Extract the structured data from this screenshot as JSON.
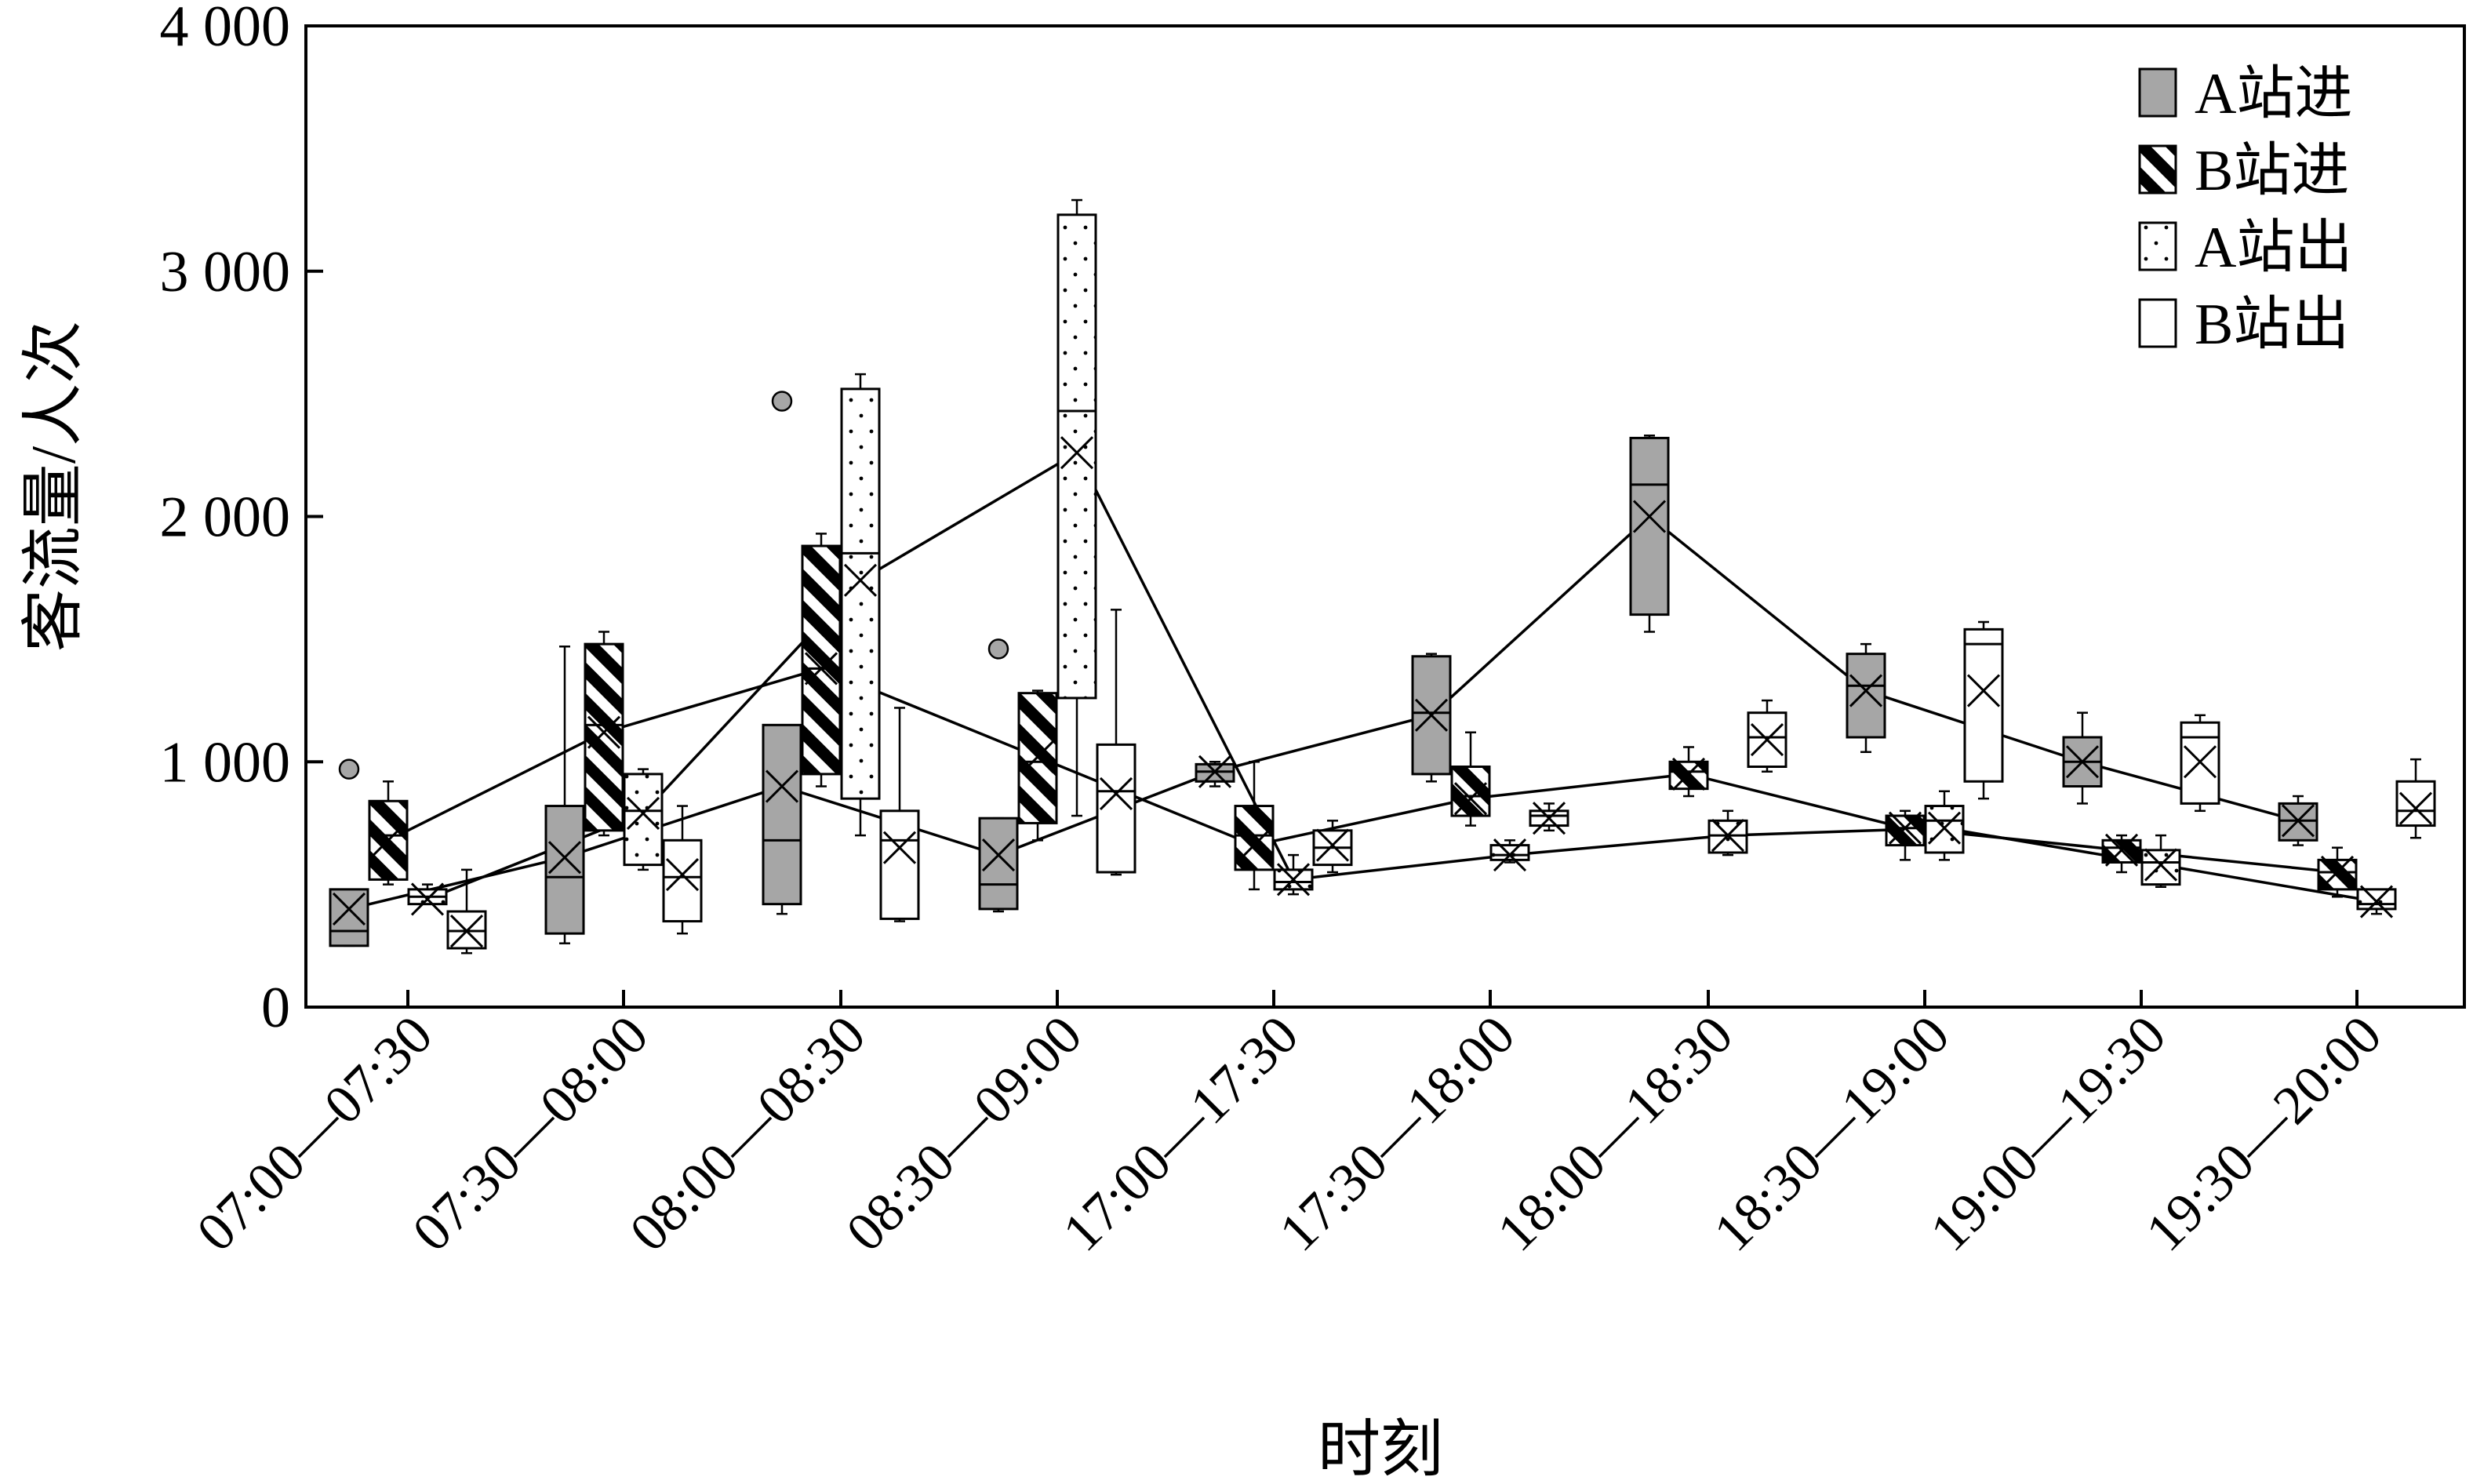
{
  "chart_data": {
    "type": "boxplot",
    "title": "",
    "xlabel": "时刻",
    "ylabel": "客流量/人次",
    "ylim": [
      0,
      4000
    ],
    "yticks": [
      0,
      1000,
      2000,
      3000,
      4000
    ],
    "ytick_labels": [
      "0",
      "1 000",
      "2 000",
      "3 000",
      "4 000"
    ],
    "grid": false,
    "legend_position": "top-right",
    "categories": [
      "07:00—07:30",
      "07:30—08:00",
      "08:00—08:30",
      "08:30—09:00",
      "17:00—17:30",
      "17:30—18:00",
      "18:00—18:30",
      "18:30—19:00",
      "19:00—19:30",
      "19:30—20:00"
    ],
    "series": [
      {
        "name": "A站进",
        "pattern": "gray",
        "boxes": [
          {
            "min": 250,
            "q1": 250,
            "median": 310,
            "q3": 480,
            "max": 480,
            "mean": 400,
            "outliers": [
              970
            ]
          },
          {
            "min": 260,
            "q1": 300,
            "median": 530,
            "q3": 820,
            "max": 1470,
            "mean": 610,
            "outliers": []
          },
          {
            "min": 380,
            "q1": 420,
            "median": 680,
            "q3": 1150,
            "max": 1150,
            "mean": 900,
            "outliers": [
              2470
            ]
          },
          {
            "min": 390,
            "q1": 400,
            "median": 500,
            "q3": 770,
            "max": 770,
            "mean": 620,
            "outliers": [
              1460
            ]
          },
          {
            "min": 900,
            "q1": 920,
            "median": 960,
            "q3": 990,
            "max": 1000,
            "mean": 960,
            "outliers": []
          },
          {
            "min": 920,
            "q1": 950,
            "median": 1200,
            "q3": 1430,
            "max": 1440,
            "mean": 1190,
            "outliers": []
          },
          {
            "min": 1530,
            "q1": 1600,
            "median": 2130,
            "q3": 2320,
            "max": 2330,
            "mean": 2000,
            "outliers": []
          },
          {
            "min": 1040,
            "q1": 1100,
            "median": 1310,
            "q3": 1440,
            "max": 1480,
            "mean": 1290,
            "outliers": []
          },
          {
            "min": 830,
            "q1": 900,
            "median": 1000,
            "q3": 1100,
            "max": 1200,
            "mean": 1000,
            "outliers": []
          },
          {
            "min": 660,
            "q1": 680,
            "median": 760,
            "q3": 830,
            "max": 860,
            "mean": 760,
            "outliers": []
          }
        ],
        "mean_line": true
      },
      {
        "name": "B站进",
        "pattern": "diagonal-stripes",
        "boxes": [
          {
            "min": 500,
            "q1": 520,
            "median": 700,
            "q3": 840,
            "max": 920,
            "mean": 680,
            "outliers": []
          },
          {
            "min": 700,
            "q1": 720,
            "median": 1150,
            "q3": 1480,
            "max": 1530,
            "mean": 1120,
            "outliers": []
          },
          {
            "min": 900,
            "q1": 950,
            "median": 1380,
            "q3": 1880,
            "max": 1930,
            "mean": 1380,
            "outliers": []
          },
          {
            "min": 680,
            "q1": 750,
            "median": 1000,
            "q3": 1280,
            "max": 1290,
            "mean": 1020,
            "outliers": []
          },
          {
            "min": 480,
            "q1": 560,
            "median": 700,
            "q3": 820,
            "max": 1000,
            "mean": 660,
            "outliers": []
          },
          {
            "min": 740,
            "q1": 780,
            "median": 860,
            "q3": 980,
            "max": 1120,
            "mean": 850,
            "outliers": []
          },
          {
            "min": 860,
            "q1": 890,
            "median": 960,
            "q3": 1000,
            "max": 1060,
            "mean": 950,
            "outliers": []
          },
          {
            "min": 600,
            "q1": 660,
            "median": 730,
            "q3": 780,
            "max": 800,
            "mean": 730,
            "outliers": []
          },
          {
            "min": 550,
            "q1": 590,
            "median": 650,
            "q3": 680,
            "max": 700,
            "mean": 640,
            "outliers": []
          },
          {
            "min": 450,
            "q1": 480,
            "median": 550,
            "q3": 600,
            "max": 650,
            "mean": 550,
            "outliers": []
          }
        ],
        "mean_line": true
      },
      {
        "name": "A站出",
        "pattern": "dotted",
        "boxes": [
          {
            "min": 420,
            "q1": 420,
            "median": 450,
            "q3": 480,
            "max": 500,
            "mean": 440,
            "outliers": []
          },
          {
            "min": 560,
            "q1": 580,
            "median": 800,
            "q3": 950,
            "max": 970,
            "mean": 790,
            "outliers": []
          },
          {
            "min": 700,
            "q1": 850,
            "median": 1850,
            "q3": 2520,
            "max": 2580,
            "mean": 1740,
            "outliers": []
          },
          {
            "min": 780,
            "q1": 1260,
            "median": 2430,
            "q3": 3230,
            "max": 3290,
            "mean": 2260,
            "outliers": []
          },
          {
            "min": 460,
            "q1": 480,
            "median": 510,
            "q3": 560,
            "max": 620,
            "mean": 520,
            "outliers": []
          },
          {
            "min": 590,
            "q1": 600,
            "median": 620,
            "q3": 660,
            "max": 680,
            "mean": 620,
            "outliers": []
          },
          {
            "min": 620,
            "q1": 630,
            "median": 700,
            "q3": 760,
            "max": 800,
            "mean": 700,
            "outliers": []
          },
          {
            "min": 600,
            "q1": 630,
            "median": 760,
            "q3": 820,
            "max": 880,
            "mean": 730,
            "outliers": []
          },
          {
            "min": 490,
            "q1": 500,
            "median": 590,
            "q3": 640,
            "max": 700,
            "mean": 580,
            "outliers": []
          },
          {
            "min": 380,
            "q1": 400,
            "median": 420,
            "q3": 480,
            "max": 480,
            "mean": 430,
            "outliers": []
          }
        ],
        "mean_line": true
      },
      {
        "name": "B站出",
        "pattern": "white",
        "boxes": [
          {
            "min": 220,
            "q1": 240,
            "median": 310,
            "q3": 390,
            "max": 560,
            "mean": 310,
            "outliers": []
          },
          {
            "min": 300,
            "q1": 350,
            "median": 530,
            "q3": 680,
            "max": 820,
            "mean": 540,
            "outliers": []
          },
          {
            "min": 350,
            "q1": 360,
            "median": 680,
            "q3": 800,
            "max": 1220,
            "mean": 650,
            "outliers": []
          },
          {
            "min": 540,
            "q1": 550,
            "median": 880,
            "q3": 1070,
            "max": 1620,
            "mean": 870,
            "outliers": []
          },
          {
            "min": 550,
            "q1": 580,
            "median": 650,
            "q3": 720,
            "max": 760,
            "mean": 660,
            "outliers": []
          },
          {
            "min": 720,
            "q1": 740,
            "median": 780,
            "q3": 800,
            "max": 830,
            "mean": 770,
            "outliers": []
          },
          {
            "min": 960,
            "q1": 980,
            "median": 1100,
            "q3": 1200,
            "max": 1250,
            "mean": 1090,
            "outliers": []
          },
          {
            "min": 850,
            "q1": 920,
            "median": 1480,
            "q3": 1540,
            "max": 1570,
            "mean": 1290,
            "outliers": []
          },
          {
            "min": 800,
            "q1": 830,
            "median": 1100,
            "q3": 1160,
            "max": 1190,
            "mean": 1000,
            "outliers": []
          },
          {
            "min": 690,
            "q1": 740,
            "median": 800,
            "q3": 920,
            "max": 1010,
            "mean": 810,
            "outliers": []
          }
        ],
        "mean_line": false
      }
    ]
  }
}
